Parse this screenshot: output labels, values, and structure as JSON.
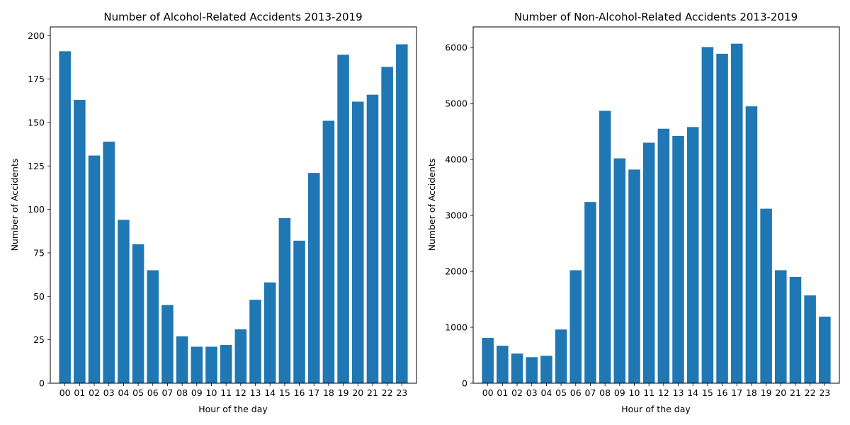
{
  "chart_data": [
    {
      "type": "bar",
      "title": "Number of Alcohol-Related Accidents 2013-2019",
      "xlabel": "Hour of the day",
      "ylabel": "Number of Accidents",
      "categories": [
        "00",
        "01",
        "02",
        "03",
        "04",
        "05",
        "06",
        "07",
        "08",
        "09",
        "10",
        "11",
        "12",
        "13",
        "14",
        "15",
        "16",
        "17",
        "18",
        "19",
        "20",
        "21",
        "22",
        "23"
      ],
      "values": [
        191,
        163,
        131,
        139,
        94,
        80,
        65,
        45,
        27,
        21,
        21,
        22,
        31,
        48,
        58,
        95,
        82,
        121,
        151,
        189,
        162,
        166,
        182,
        195
      ],
      "ylim": [
        0,
        205
      ],
      "yticks": [
        0,
        25,
        50,
        75,
        100,
        125,
        150,
        175,
        200
      ],
      "ytick_labels": [
        "0",
        "25",
        "50",
        "75",
        "100",
        "125",
        "150",
        "175",
        "200"
      ],
      "color": "#1f77b4",
      "grid": false
    },
    {
      "type": "bar",
      "title": "Number of Non-Alcohol-Related Accidents 2013-2019",
      "xlabel": "Hour of the day",
      "ylabel": "Number of Accidents",
      "categories": [
        "00",
        "01",
        "02",
        "03",
        "04",
        "05",
        "06",
        "07",
        "08",
        "09",
        "10",
        "11",
        "12",
        "13",
        "14",
        "15",
        "16",
        "17",
        "18",
        "19",
        "20",
        "21",
        "22",
        "23"
      ],
      "values": [
        810,
        670,
        530,
        465,
        490,
        960,
        2020,
        3240,
        4870,
        4020,
        3820,
        4300,
        4550,
        4420,
        4580,
        6010,
        5890,
        6070,
        4950,
        3120,
        2020,
        1900,
        1570,
        1190
      ],
      "ylim": [
        0,
        6370
      ],
      "yticks": [
        0,
        1000,
        2000,
        3000,
        4000,
        5000,
        6000
      ],
      "ytick_labels": [
        "0",
        "1000",
        "2000",
        "3000",
        "4000",
        "5000",
        "6000"
      ],
      "color": "#1f77b4",
      "grid": false
    }
  ]
}
